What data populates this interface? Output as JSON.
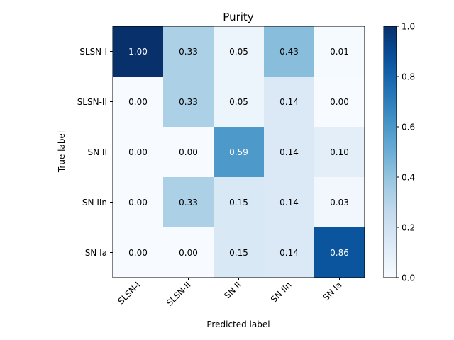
{
  "chart_data": {
    "type": "heatmap",
    "title": "Purity",
    "xlabel": "Predicted label",
    "ylabel": "True label",
    "x_categories": [
      "SLSN-I",
      "SLSN-II",
      "SN II",
      "SN IIn",
      "SN Ia"
    ],
    "y_categories": [
      "SLSN-I",
      "SLSN-II",
      "SN II",
      "SN IIn",
      "SN Ia"
    ],
    "values": [
      [
        1.0,
        0.33,
        0.05,
        0.43,
        0.01
      ],
      [
        0.0,
        0.33,
        0.05,
        0.14,
        0.0
      ],
      [
        0.0,
        0.0,
        0.59,
        0.14,
        0.1
      ],
      [
        0.0,
        0.33,
        0.15,
        0.14,
        0.03
      ],
      [
        0.0,
        0.0,
        0.15,
        0.14,
        0.86
      ]
    ],
    "value_format": "0.00",
    "colormap": "Blues",
    "color_range": [
      0.0,
      1.0
    ],
    "colorbar_ticks": [
      "0.0",
      "0.2",
      "0.4",
      "0.6",
      "0.8",
      "1.0"
    ],
    "grid": false
  }
}
